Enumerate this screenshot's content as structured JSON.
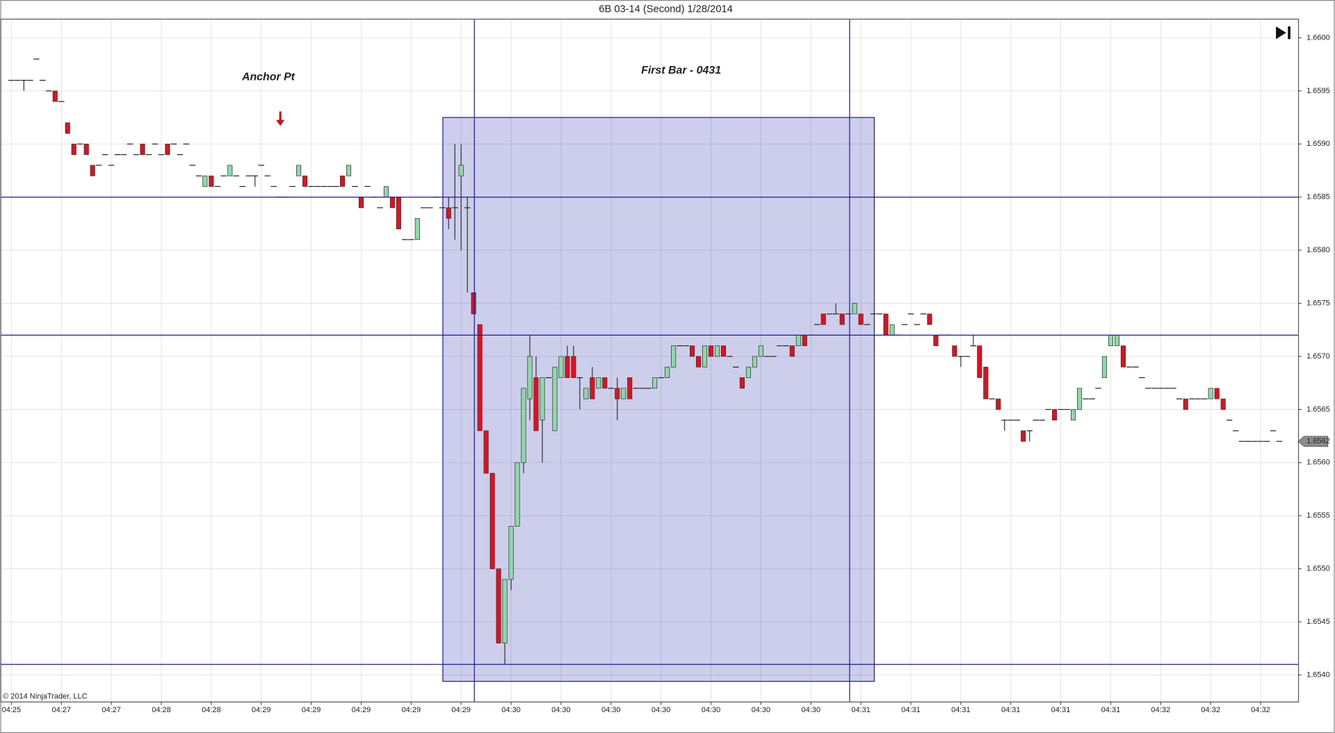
{
  "chart_data": {
    "type": "candlestick",
    "title": "6B 03-14 (Second)  1/28/2014",
    "copyright": "© 2014 NinjaTrader, LLC",
    "annotations": [
      "Anchor Pt",
      "First Bar - 0431"
    ],
    "up_color": "#8fd8a8",
    "down_color": "#e0101e",
    "drawing_color": "#1a1aa8",
    "ylim": [
      1.65375,
      1.66018
    ],
    "yticks": [
      {
        "value": 1.654,
        "label": "1.6540"
      },
      1.6545,
      {
        "value": 1.655,
        "label": "1.6550"
      },
      1.6555,
      {
        "value": 1.656,
        "label": "1.6560"
      },
      1.6565,
      {
        "value": 1.657,
        "label": "1.6570"
      },
      1.6575,
      {
        "value": 1.658,
        "label": "1.6580"
      },
      1.6585,
      {
        "value": 1.659,
        "label": "1.6590"
      },
      1.6595,
      {
        "value": 1.66,
        "label": "1.6600"
      }
    ],
    "grid": true,
    "horizontal_lines": [
      1.6585,
      1.6572,
      1.6541
    ],
    "range_box": [
      1.65925,
      1.65394
    ],
    "last_price": 1.6562,
    "categories": [
      "04:25",
      null,
      null,
      null,
      null,
      null,
      null,
      null,
      "04:27",
      null,
      null,
      null,
      null,
      null,
      null,
      null,
      "04:27",
      null,
      null,
      null,
      null,
      null,
      null,
      null,
      "04:28",
      null,
      null,
      null,
      null,
      null,
      null,
      null,
      "04:28",
      null,
      null,
      null,
      null,
      null,
      null,
      null,
      "04:29",
      null,
      null,
      null,
      null,
      null,
      null,
      null,
      "04:29",
      null,
      null,
      null,
      null,
      null,
      null,
      null,
      "04:29",
      null,
      null,
      null,
      null,
      null,
      null,
      null,
      "04:29",
      null,
      null,
      null,
      null,
      null,
      null,
      null,
      "04:29",
      null,
      null,
      null,
      null,
      null,
      null,
      null,
      "04:30",
      null,
      null,
      null,
      null,
      null,
      null,
      null,
      "04:30",
      null,
      null,
      null,
      null,
      null,
      null,
      null,
      "04:30",
      null,
      null,
      null,
      null,
      null,
      null,
      null,
      "04:30",
      null,
      null,
      null,
      null,
      null,
      null,
      null,
      "04:30",
      null,
      null,
      null,
      null,
      null,
      null,
      null,
      "04:30",
      null,
      null,
      null,
      null,
      null,
      null,
      null,
      "04:30",
      null,
      null,
      null,
      null,
      null,
      null,
      null,
      "04:31",
      null,
      null,
      null,
      null,
      null,
      null,
      null,
      "04:31",
      null,
      null,
      null,
      null,
      null,
      null,
      null,
      "04:31",
      null,
      null,
      null,
      null,
      null,
      null,
      null,
      "04:31",
      null,
      null,
      null,
      null,
      null,
      null,
      null,
      "04:31",
      null,
      null,
      null,
      null,
      null,
      null,
      null,
      "04:31",
      null,
      null,
      null,
      null,
      null,
      null,
      null,
      "04:32",
      null,
      null,
      null,
      null,
      null,
      null,
      null,
      "04:32",
      null,
      null,
      null,
      null,
      null,
      null,
      null,
      "04:32",
      null,
      null,
      null
    ],
    "ohlc": [
      [
        1.6596,
        1.6596,
        1.6596,
        1.6596
      ],
      [
        1.6596,
        1.6596,
        1.6596,
        1.6596
      ],
      [
        1.6596,
        1.6596,
        1.6595,
        1.6596
      ],
      [
        1.6596,
        1.6596,
        1.6596,
        1.6596
      ],
      [
        1.6598,
        1.6598,
        1.6598,
        1.6598
      ],
      [
        1.6596,
        1.6596,
        1.6596,
        1.6596
      ],
      [
        1.6595,
        1.6595,
        1.6595,
        1.6595
      ],
      [
        1.6595,
        1.6595,
        1.6594,
        1.6594
      ],
      [
        1.6594,
        1.6594,
        1.6594,
        1.6594
      ],
      [
        1.6592,
        1.6592,
        1.6591,
        1.6591
      ],
      [
        1.659,
        1.659,
        1.6589,
        1.6589
      ],
      [
        1.659,
        1.659,
        1.659,
        1.659
      ],
      [
        1.659,
        1.659,
        1.6589,
        1.6589
      ],
      [
        1.6588,
        1.6588,
        1.6587,
        1.6587
      ],
      [
        1.6588,
        1.6588,
        1.6588,
        1.6588
      ],
      [
        1.6589,
        1.6589,
        1.6589,
        1.6589
      ],
      [
        1.6588,
        1.6588,
        1.6588,
        1.6588
      ],
      [
        1.6589,
        1.6589,
        1.6589,
        1.6589
      ],
      [
        1.6589,
        1.6589,
        1.6589,
        1.6589
      ],
      [
        1.659,
        1.659,
        1.659,
        1.659
      ],
      [
        1.6589,
        1.6589,
        1.6589,
        1.6589
      ],
      [
        1.659,
        1.659,
        1.6589,
        1.6589
      ],
      [
        1.6589,
        1.6589,
        1.6589,
        1.6589
      ],
      [
        1.659,
        1.659,
        1.659,
        1.659
      ],
      [
        1.6589,
        1.6589,
        1.6589,
        1.6589
      ],
      [
        1.659,
        1.659,
        1.6589,
        1.6589
      ],
      [
        1.659,
        1.659,
        1.659,
        1.659
      ],
      [
        1.6589,
        1.6589,
        1.6589,
        1.6589
      ],
      [
        1.659,
        1.659,
        1.659,
        1.659
      ],
      [
        1.6588,
        1.6588,
        1.6588,
        1.6588
      ],
      [
        1.6587,
        1.6587,
        1.6587,
        1.6587
      ],
      [
        1.6586,
        1.6587,
        1.6586,
        1.6587
      ],
      [
        1.6587,
        1.6587,
        1.6586,
        1.6586
      ],
      [
        1.6586,
        1.6586,
        1.6586,
        1.6586
      ],
      [
        1.6587,
        1.6587,
        1.6587,
        1.6587
      ],
      [
        1.6587,
        1.6588,
        1.6587,
        1.6588
      ],
      [
        1.6587,
        1.6587,
        1.6587,
        1.6587
      ],
      [
        1.6586,
        1.6586,
        1.6586,
        1.6586
      ],
      [
        1.6587,
        1.6587,
        1.6587,
        1.6587
      ],
      [
        1.6587,
        1.6587,
        1.6586,
        1.6587
      ],
      [
        1.6588,
        1.6588,
        1.6588,
        1.6588
      ],
      [
        1.6587,
        1.6587,
        1.6587,
        1.6587
      ],
      [
        1.6586,
        1.6586,
        1.6586,
        1.6586
      ],
      [
        1.6585,
        1.6585,
        1.6585,
        1.6585
      ],
      [
        1.6585,
        1.6585,
        1.6585,
        1.6585
      ],
      [
        1.6586,
        1.6586,
        1.6586,
        1.6586
      ],
      [
        1.6587,
        1.6588,
        1.6587,
        1.6588
      ],
      [
        1.6587,
        1.6587,
        1.6586,
        1.6586
      ],
      [
        1.6586,
        1.6586,
        1.6586,
        1.6586
      ],
      [
        1.6586,
        1.6586,
        1.6586,
        1.6586
      ],
      [
        1.6586,
        1.6586,
        1.6586,
        1.6586
      ],
      [
        1.6586,
        1.6586,
        1.6586,
        1.6586
      ],
      [
        1.6586,
        1.6586,
        1.6586,
        1.6586
      ],
      [
        1.6587,
        1.6587,
        1.6586,
        1.6586
      ],
      [
        1.6587,
        1.6588,
        1.6587,
        1.6588
      ],
      [
        1.6586,
        1.6586,
        1.6586,
        1.6586
      ],
      [
        1.6585,
        1.6585,
        1.6584,
        1.6584
      ],
      [
        1.6586,
        1.6586,
        1.6586,
        1.6586
      ],
      [
        1.6585,
        1.6585,
        1.6585,
        1.6585
      ],
      [
        1.6584,
        1.6584,
        1.6584,
        1.6584
      ],
      [
        1.6585,
        1.6586,
        1.6585,
        1.6586
      ],
      [
        1.6585,
        1.6585,
        1.6584,
        1.6584
      ],
      [
        1.6585,
        1.6585,
        1.6582,
        1.6582
      ],
      [
        1.6581,
        1.6581,
        1.6581,
        1.6581
      ],
      [
        1.6581,
        1.6581,
        1.6581,
        1.6581
      ],
      [
        1.6581,
        1.6583,
        1.6581,
        1.6583
      ],
      [
        1.6584,
        1.6584,
        1.6584,
        1.6584
      ],
      [
        1.6584,
        1.6584,
        1.6584,
        1.6584
      ],
      [
        1.6585,
        1.6585,
        1.6585,
        1.6585
      ],
      [
        1.6584,
        1.6584,
        1.6584,
        1.6584
      ],
      [
        1.6584,
        1.6585,
        1.6582,
        1.6583
      ],
      [
        1.6584,
        1.659,
        1.6581,
        1.6584
      ],
      [
        1.6587,
        1.659,
        1.658,
        1.6588
      ],
      [
        1.6584,
        1.6585,
        1.6576,
        1.6584
      ],
      [
        1.6576,
        1.6576,
        1.6574,
        1.6574
      ],
      [
        1.6573,
        1.6573,
        1.6563,
        1.6563
      ],
      [
        1.6563,
        1.6563,
        1.6559,
        1.6559
      ],
      [
        1.6559,
        1.6559,
        1.655,
        1.655
      ],
      [
        1.655,
        1.655,
        1.6543,
        1.6543
      ],
      [
        1.6543,
        1.6549,
        1.6541,
        1.6549
      ],
      [
        1.6549,
        1.6554,
        1.6548,
        1.6554
      ],
      [
        1.6554,
        1.656,
        1.6554,
        1.656
      ],
      [
        1.656,
        1.6567,
        1.6559,
        1.6567
      ],
      [
        1.6566,
        1.6572,
        1.6564,
        1.657
      ],
      [
        1.6568,
        1.657,
        1.6563,
        1.6563
      ],
      [
        1.6564,
        1.6568,
        1.656,
        1.6568
      ],
      [
        1.6568,
        1.6568,
        1.6568,
        1.6568
      ],
      [
        1.6563,
        1.6569,
        1.6563,
        1.6569
      ],
      [
        1.6568,
        1.657,
        1.6568,
        1.657
      ],
      [
        1.657,
        1.6571,
        1.6568,
        1.6568
      ],
      [
        1.657,
        1.6571,
        1.6568,
        1.6568
      ],
      [
        1.6568,
        1.6568,
        1.6565,
        1.6568
      ],
      [
        1.6566,
        1.6567,
        1.6566,
        1.6567
      ],
      [
        1.6568,
        1.6569,
        1.6566,
        1.6566
      ],
      [
        1.6567,
        1.6568,
        1.6567,
        1.6568
      ],
      [
        1.6568,
        1.6568,
        1.6567,
        1.6567
      ],
      [
        1.6567,
        1.6567,
        1.6567,
        1.6567
      ],
      [
        1.6567,
        1.6568,
        1.6564,
        1.6566
      ],
      [
        1.6566,
        1.6567,
        1.6566,
        1.6567
      ],
      [
        1.6568,
        1.6568,
        1.6566,
        1.6566
      ],
      [
        1.6567,
        1.6567,
        1.6567,
        1.6567
      ],
      [
        1.6567,
        1.6567,
        1.6567,
        1.6567
      ],
      [
        1.6567,
        1.6567,
        1.6567,
        1.6567
      ],
      [
        1.6567,
        1.6568,
        1.6567,
        1.6568
      ],
      [
        1.6568,
        1.6568,
        1.6568,
        1.6568
      ],
      [
        1.6568,
        1.6569,
        1.6568,
        1.6569
      ],
      [
        1.6569,
        1.6571,
        1.6569,
        1.6571
      ],
      [
        1.6571,
        1.6571,
        1.6571,
        1.6571
      ],
      [
        1.6571,
        1.6571,
        1.6571,
        1.6571
      ],
      [
        1.6571,
        1.6571,
        1.657,
        1.657
      ],
      [
        1.657,
        1.657,
        1.6569,
        1.6569
      ],
      [
        1.6569,
        1.6571,
        1.6569,
        1.6571
      ],
      [
        1.6571,
        1.6571,
        1.657,
        1.657
      ],
      [
        1.657,
        1.6571,
        1.657,
        1.6571
      ],
      [
        1.6571,
        1.6571,
        1.657,
        1.657
      ],
      [
        1.657,
        1.657,
        1.657,
        1.657
      ],
      [
        1.6569,
        1.6569,
        1.6569,
        1.6569
      ],
      [
        1.6568,
        1.6568,
        1.6567,
        1.6567
      ],
      [
        1.6568,
        1.6569,
        1.6568,
        1.6569
      ],
      [
        1.6569,
        1.657,
        1.6569,
        1.657
      ],
      [
        1.657,
        1.6571,
        1.657,
        1.6571
      ],
      [
        1.657,
        1.657,
        1.657,
        1.657
      ],
      [
        1.657,
        1.657,
        1.657,
        1.657
      ],
      [
        1.6571,
        1.6571,
        1.6571,
        1.6571
      ],
      [
        1.6571,
        1.6571,
        1.6571,
        1.6571
      ],
      [
        1.6571,
        1.6571,
        1.657,
        1.657
      ],
      [
        1.6571,
        1.6572,
        1.6571,
        1.6572
      ],
      [
        1.6572,
        1.6572,
        1.6571,
        1.6571
      ],
      [
        1.6572,
        1.6572,
        1.6572,
        1.6572
      ],
      [
        1.6573,
        1.6573,
        1.6573,
        1.6573
      ],
      [
        1.6574,
        1.6574,
        1.6573,
        1.6573
      ],
      [
        1.6574,
        1.6574,
        1.6574,
        1.6574
      ],
      [
        1.6574,
        1.6575,
        1.6574,
        1.6574
      ],
      [
        1.6574,
        1.6574,
        1.6573,
        1.6573
      ],
      [
        1.6574,
        1.6574,
        1.6574,
        1.6574
      ],
      [
        1.6574,
        1.6575,
        1.6574,
        1.6575
      ],
      [
        1.6574,
        1.6574,
        1.6573,
        1.6573
      ],
      [
        1.6573,
        1.6573,
        1.6573,
        1.6573
      ],
      [
        1.6574,
        1.6574,
        1.6574,
        1.6574
      ],
      [
        1.6574,
        1.6574,
        1.6574,
        1.6574
      ],
      [
        1.6574,
        1.6574,
        1.6572,
        1.6572
      ],
      [
        1.6572,
        1.6573,
        1.6572,
        1.6573
      ],
      [
        1.6572,
        1.6572,
        1.6572,
        1.6572
      ],
      [
        1.6573,
        1.6573,
        1.6573,
        1.6573
      ],
      [
        1.6574,
        1.6574,
        1.6574,
        1.6574
      ],
      [
        1.6573,
        1.6573,
        1.6573,
        1.6573
      ],
      [
        1.6574,
        1.6574,
        1.6574,
        1.6574
      ],
      [
        1.6574,
        1.6574,
        1.6573,
        1.6573
      ],
      [
        1.6572,
        1.6572,
        1.6571,
        1.6571
      ],
      [
        1.6572,
        1.6572,
        1.6572,
        1.6572
      ],
      [
        1.6572,
        1.6572,
        1.6572,
        1.6572
      ],
      [
        1.6571,
        1.6571,
        1.657,
        1.657
      ],
      [
        1.657,
        1.657,
        1.6569,
        1.657
      ],
      [
        1.657,
        1.657,
        1.657,
        1.657
      ],
      [
        1.6571,
        1.6572,
        1.6571,
        1.6571
      ],
      [
        1.6571,
        1.6571,
        1.6568,
        1.6568
      ],
      [
        1.6569,
        1.6569,
        1.6566,
        1.6566
      ],
      [
        1.6566,
        1.6566,
        1.6566,
        1.6566
      ],
      [
        1.6566,
        1.6566,
        1.6565,
        1.6565
      ],
      [
        1.6564,
        1.6564,
        1.6563,
        1.6564
      ],
      [
        1.6564,
        1.6564,
        1.6564,
        1.6564
      ],
      [
        1.6564,
        1.6564,
        1.6564,
        1.6564
      ],
      [
        1.6563,
        1.6563,
        1.6562,
        1.6562
      ],
      [
        1.6563,
        1.6563,
        1.6562,
        1.6563
      ],
      [
        1.6564,
        1.6564,
        1.6564,
        1.6564
      ],
      [
        1.6564,
        1.6564,
        1.6564,
        1.6564
      ],
      [
        1.6565,
        1.6565,
        1.6565,
        1.6565
      ],
      [
        1.6565,
        1.6565,
        1.6564,
        1.6564
      ],
      [
        1.6565,
        1.6565,
        1.6565,
        1.6565
      ],
      [
        1.6565,
        1.6565,
        1.6565,
        1.6565
      ],
      [
        1.6564,
        1.6565,
        1.6564,
        1.6565
      ],
      [
        1.6565,
        1.6567,
        1.6565,
        1.6567
      ],
      [
        1.6566,
        1.6566,
        1.6566,
        1.6566
      ],
      [
        1.6566,
        1.6566,
        1.6566,
        1.6566
      ],
      [
        1.6567,
        1.6567,
        1.6567,
        1.6567
      ],
      [
        1.6568,
        1.657,
        1.6568,
        1.657
      ],
      [
        1.6571,
        1.6572,
        1.6571,
        1.6572
      ],
      [
        1.6571,
        1.6572,
        1.6571,
        1.6572
      ],
      [
        1.6571,
        1.6571,
        1.6569,
        1.6569
      ],
      [
        1.6569,
        1.6569,
        1.6569,
        1.6569
      ],
      [
        1.6569,
        1.6569,
        1.6569,
        1.6569
      ],
      [
        1.6568,
        1.6568,
        1.6568,
        1.6568
      ],
      [
        1.6567,
        1.6567,
        1.6567,
        1.6567
      ],
      [
        1.6567,
        1.6567,
        1.6567,
        1.6567
      ],
      [
        1.6567,
        1.6567,
        1.6567,
        1.6567
      ],
      [
        1.6567,
        1.6567,
        1.6567,
        1.6567
      ],
      [
        1.6567,
        1.6567,
        1.6567,
        1.6567
      ],
      [
        1.6566,
        1.6566,
        1.6566,
        1.6566
      ],
      [
        1.6566,
        1.6566,
        1.6565,
        1.6565
      ],
      [
        1.6566,
        1.6566,
        1.6566,
        1.6566
      ],
      [
        1.6566,
        1.6566,
        1.6566,
        1.6566
      ],
      [
        1.6566,
        1.6566,
        1.6566,
        1.6566
      ],
      [
        1.6566,
        1.6567,
        1.6566,
        1.6567
      ],
      [
        1.6567,
        1.6567,
        1.6566,
        1.6566
      ],
      [
        1.6566,
        1.6566,
        1.6565,
        1.6565
      ],
      [
        1.6564,
        1.6564,
        1.6564,
        1.6564
      ],
      [
        1.6563,
        1.6563,
        1.6563,
        1.6563
      ],
      [
        1.6562,
        1.6562,
        1.6562,
        1.6562
      ],
      [
        1.6562,
        1.6562,
        1.6562,
        1.6562
      ],
      [
        1.6562,
        1.6562,
        1.6562,
        1.6562
      ],
      [
        1.6562,
        1.6562,
        1.6562,
        1.6562
      ],
      [
        1.6562,
        1.6562,
        1.6562,
        1.6562
      ],
      [
        1.6563,
        1.6563,
        1.6563,
        1.6563
      ],
      [
        1.6562,
        1.6562,
        1.6562,
        1.6562
      ]
    ]
  }
}
